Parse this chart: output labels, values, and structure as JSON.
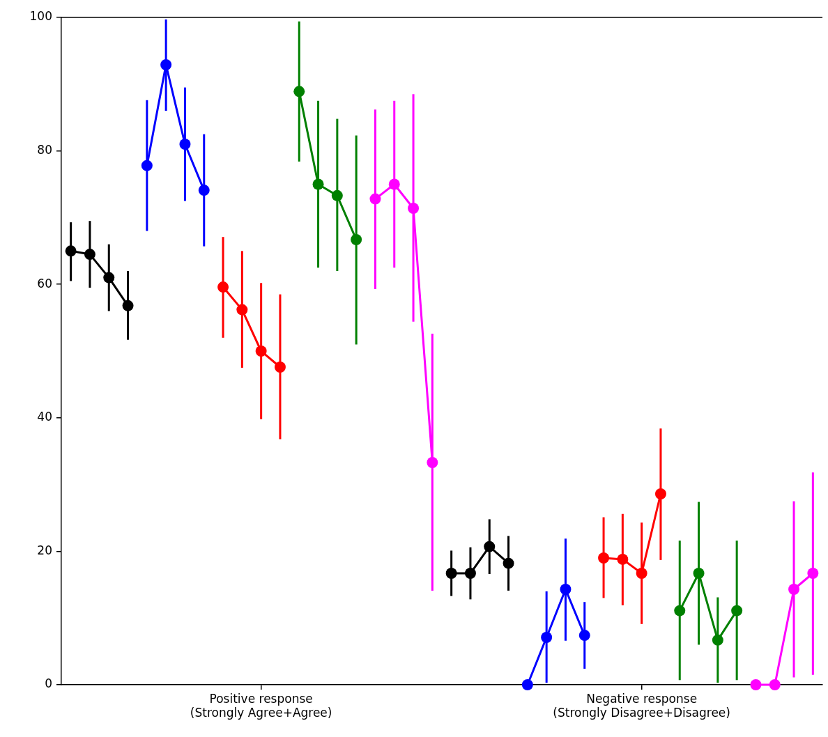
{
  "chart_data": {
    "type": "line",
    "marker": "circle",
    "grid": false,
    "legend": false,
    "ylim": [
      0,
      100
    ],
    "yticks": [
      0,
      20,
      40,
      60,
      80,
      100
    ],
    "categories": [
      null,
      null,
      null,
      null,
      null,
      null,
      null,
      null,
      null,
      null,
      "Positive response\n(Strongly Agree+Agree)",
      null,
      null,
      null,
      null,
      null,
      null,
      null,
      null,
      null,
      null,
      null,
      null,
      null,
      null,
      null,
      null,
      null,
      null,
      null,
      "Negative response\n(Strongly Disagree+Disagree)",
      null,
      null,
      null,
      null,
      null,
      null,
      null,
      null,
      null
    ],
    "series": [
      {
        "color": "#000000",
        "values": [
          65,
          64.5,
          61,
          56.8,
          null,
          null,
          null,
          null,
          null,
          null,
          null,
          null,
          null,
          null,
          null,
          null,
          null,
          null,
          null,
          null,
          16.7,
          16.7,
          20.7,
          18.2,
          null,
          null,
          null,
          null,
          null,
          null,
          null,
          null,
          null,
          null,
          null,
          null,
          null,
          null,
          null,
          null
        ],
        "errors": [
          [
            60.5,
            69.3
          ],
          [
            59.5,
            69.5
          ],
          [
            56,
            66
          ],
          [
            51.7,
            62
          ],
          null,
          null,
          null,
          null,
          null,
          null,
          null,
          null,
          null,
          null,
          null,
          null,
          null,
          null,
          null,
          null,
          [
            13.3,
            20.1
          ],
          [
            12.8,
            20.6
          ],
          [
            16.6,
            24.8
          ],
          [
            14.1,
            22.3
          ],
          null,
          null,
          null,
          null,
          null,
          null,
          null,
          null,
          null,
          null,
          null,
          null,
          null,
          null,
          null,
          null
        ]
      },
      {
        "color": "#0000ff",
        "values": [
          null,
          null,
          null,
          null,
          77.8,
          92.9,
          81,
          74.1,
          null,
          null,
          null,
          null,
          null,
          null,
          null,
          null,
          null,
          null,
          null,
          null,
          null,
          null,
          null,
          null,
          0,
          7.1,
          14.3,
          7.4,
          null,
          null,
          null,
          null,
          null,
          null,
          null,
          null,
          null,
          null,
          null,
          null
        ],
        "errors": [
          null,
          null,
          null,
          null,
          [
            68,
            87.6
          ],
          [
            86,
            99.7
          ],
          [
            72.5,
            89.5
          ],
          [
            65.7,
            82.5
          ],
          null,
          null,
          null,
          null,
          null,
          null,
          null,
          null,
          null,
          null,
          null,
          null,
          null,
          null,
          null,
          null,
          null,
          [
            0.3,
            14
          ],
          [
            6.6,
            21.9
          ],
          [
            2.4,
            12.4
          ],
          null,
          null,
          null,
          null,
          null,
          null,
          null,
          null,
          null,
          null,
          null,
          null
        ]
      },
      {
        "color": "#ff0000",
        "values": [
          null,
          null,
          null,
          null,
          null,
          null,
          null,
          null,
          59.6,
          56.2,
          50,
          47.6,
          null,
          null,
          null,
          null,
          null,
          null,
          null,
          null,
          null,
          null,
          null,
          null,
          null,
          null,
          null,
          null,
          19,
          18.8,
          16.7,
          28.6,
          null,
          null,
          null,
          null,
          null,
          null,
          null,
          null
        ],
        "errors": [
          null,
          null,
          null,
          null,
          null,
          null,
          null,
          null,
          [
            52,
            67.1
          ],
          [
            47.5,
            65
          ],
          [
            39.8,
            60.2
          ],
          [
            36.8,
            58.5
          ],
          null,
          null,
          null,
          null,
          null,
          null,
          null,
          null,
          null,
          null,
          null,
          null,
          null,
          null,
          null,
          null,
          [
            13,
            25.1
          ],
          [
            11.9,
            25.6
          ],
          [
            9.1,
            24.3
          ],
          [
            18.7,
            38.4
          ],
          null,
          null,
          null,
          null,
          null,
          null,
          null,
          null
        ]
      },
      {
        "color": "#008000",
        "values": [
          null,
          null,
          null,
          null,
          null,
          null,
          null,
          null,
          null,
          null,
          null,
          null,
          88.9,
          75,
          73.3,
          66.7,
          null,
          null,
          null,
          null,
          null,
          null,
          null,
          null,
          null,
          null,
          null,
          null,
          null,
          null,
          null,
          null,
          11.1,
          16.7,
          6.7,
          11.1,
          null,
          null,
          null,
          null
        ],
        "errors": [
          null,
          null,
          null,
          null,
          null,
          null,
          null,
          null,
          null,
          null,
          null,
          null,
          [
            78.4,
            99.4
          ],
          [
            62.5,
            87.5
          ],
          [
            62,
            84.8
          ],
          [
            51,
            82.3
          ],
          null,
          null,
          null,
          null,
          null,
          null,
          null,
          null,
          null,
          null,
          null,
          null,
          null,
          null,
          null,
          null,
          [
            0.7,
            21.6
          ],
          [
            6,
            27.4
          ],
          [
            0.3,
            13.1
          ],
          [
            0.7,
            21.6
          ],
          null,
          null,
          null,
          null
        ]
      },
      {
        "color": "#ff00ff",
        "values": [
          null,
          null,
          null,
          null,
          null,
          null,
          null,
          null,
          null,
          null,
          null,
          null,
          null,
          null,
          null,
          null,
          72.8,
          75,
          71.4,
          33.3,
          null,
          null,
          null,
          null,
          null,
          null,
          null,
          null,
          null,
          null,
          null,
          null,
          null,
          null,
          null,
          null,
          0,
          0,
          14.3,
          16.7
        ],
        "errors": [
          null,
          null,
          null,
          null,
          null,
          null,
          null,
          null,
          null,
          null,
          null,
          null,
          null,
          null,
          null,
          null,
          [
            59.3,
            86.2
          ],
          [
            62.5,
            87.5
          ],
          [
            54.4,
            88.5
          ],
          [
            14.1,
            52.6
          ],
          null,
          null,
          null,
          null,
          null,
          null,
          null,
          null,
          null,
          null,
          null,
          null,
          null,
          null,
          null,
          null,
          null,
          null,
          [
            1.1,
            27.5
          ],
          [
            1.5,
            31.8
          ]
        ]
      }
    ]
  }
}
